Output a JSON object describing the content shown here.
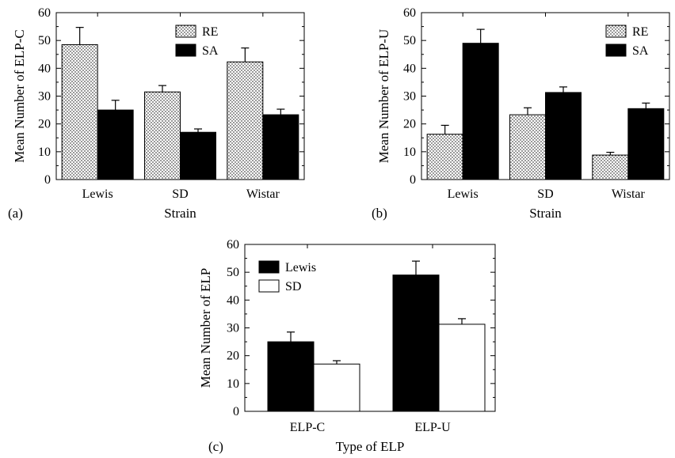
{
  "panels": [
    {
      "label": "(a)",
      "chart_data": {
        "type": "bar",
        "categories": [
          "Lewis",
          "SD",
          "Wistar"
        ],
        "xlabel": "Strain",
        "ylabel": "Mean Number of ELP-C",
        "ylim": [
          0,
          60
        ],
        "yticks": [
          0,
          10,
          20,
          30,
          40,
          50,
          60
        ],
        "legend_position": "top-center",
        "series": [
          {
            "name": "RE",
            "pattern": "dotted",
            "values": [
              48.5,
              31.5,
              42.3
            ],
            "errors": [
              6.2,
              2.3,
              5.0
            ]
          },
          {
            "name": "SA",
            "pattern": "solid-black",
            "values": [
              25.0,
              17.0,
              23.3
            ],
            "errors": [
              3.5,
              1.2,
              2.0
            ]
          }
        ]
      }
    },
    {
      "label": "(b)",
      "chart_data": {
        "type": "bar",
        "categories": [
          "Lewis",
          "SD",
          "Wistar"
        ],
        "xlabel": "Strain",
        "ylabel": "Mean Number of ELP-U",
        "ylim": [
          0,
          60
        ],
        "yticks": [
          0,
          10,
          20,
          30,
          40,
          50,
          60
        ],
        "legend_position": "top-right",
        "series": [
          {
            "name": "RE",
            "pattern": "dotted",
            "values": [
              16.3,
              23.3,
              8.8
            ],
            "errors": [
              3.2,
              2.5,
              1.0
            ]
          },
          {
            "name": "SA",
            "pattern": "solid-black",
            "values": [
              49.0,
              31.3,
              25.5
            ],
            "errors": [
              5.0,
              2.0,
              2.0
            ]
          }
        ]
      }
    },
    {
      "label": "(c)",
      "chart_data": {
        "type": "bar",
        "categories": [
          "ELP-C",
          "ELP-U"
        ],
        "xlabel": "Type of ELP",
        "ylabel": "Mean Number of ELP",
        "ylim": [
          0,
          60
        ],
        "yticks": [
          0,
          10,
          20,
          30,
          40,
          50,
          60
        ],
        "legend_position": "top-left",
        "series": [
          {
            "name": "Lewis",
            "pattern": "solid-black",
            "values": [
              25.0,
              49.0
            ],
            "errors": [
              3.5,
              5.0
            ]
          },
          {
            "name": "SD",
            "pattern": "white",
            "values": [
              17.0,
              31.3
            ],
            "errors": [
              1.2,
              2.0
            ]
          }
        ]
      }
    }
  ]
}
